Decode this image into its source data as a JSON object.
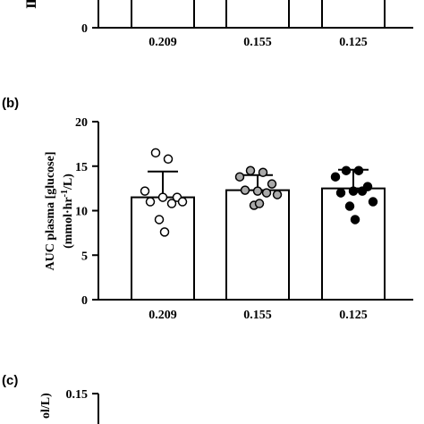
{
  "chart_data": [
    {
      "panel": "",
      "type": "bar",
      "categories": [
        "0.209",
        "0.155",
        "0.125"
      ],
      "partial": true,
      "tick_labels_y": [
        "0"
      ]
    },
    {
      "panel": "(b)",
      "type": "bar",
      "categories": [
        "0.209",
        "0.155",
        "0.125"
      ],
      "ylabel_line1": "AUC plasma [glucose]",
      "ylabel_line2_pre": "(mmol·hr",
      "ylabel_line2_sup": "-1",
      "ylabel_line2_post": "/L)",
      "ylim": [
        0,
        20
      ],
      "yticks": [
        0,
        5,
        10,
        15,
        20
      ],
      "ytick_labels": [
        "0",
        "5",
        "10",
        "15",
        "20"
      ],
      "series": [
        {
          "category": "0.209",
          "mean": 11.5,
          "sd": 2.9,
          "point_fill": "#ffffff",
          "points": [
            16.5,
            15.8,
            12.2,
            11.5,
            11.5,
            11.0,
            10.8,
            11.0,
            9.0,
            7.6
          ]
        },
        {
          "category": "0.155",
          "mean": 12.3,
          "sd": 1.7,
          "point_fill": "#a9a9a9",
          "points": [
            14.5,
            14.3,
            13.8,
            13.0,
            12.2,
            12.3,
            12.0,
            11.8,
            10.6,
            10.8
          ]
        },
        {
          "category": "0.125",
          "mean": 12.5,
          "sd": 2.1,
          "point_fill": "#000000",
          "points": [
            14.5,
            14.5,
            13.8,
            12.7,
            12.2,
            12.0,
            12.2,
            11.0,
            10.5,
            9.0
          ]
        }
      ]
    },
    {
      "panel": "(c)",
      "type": "bar",
      "partial": true,
      "ylabel_fragment": "ol/L)",
      "ytick_top": "0.15"
    }
  ]
}
